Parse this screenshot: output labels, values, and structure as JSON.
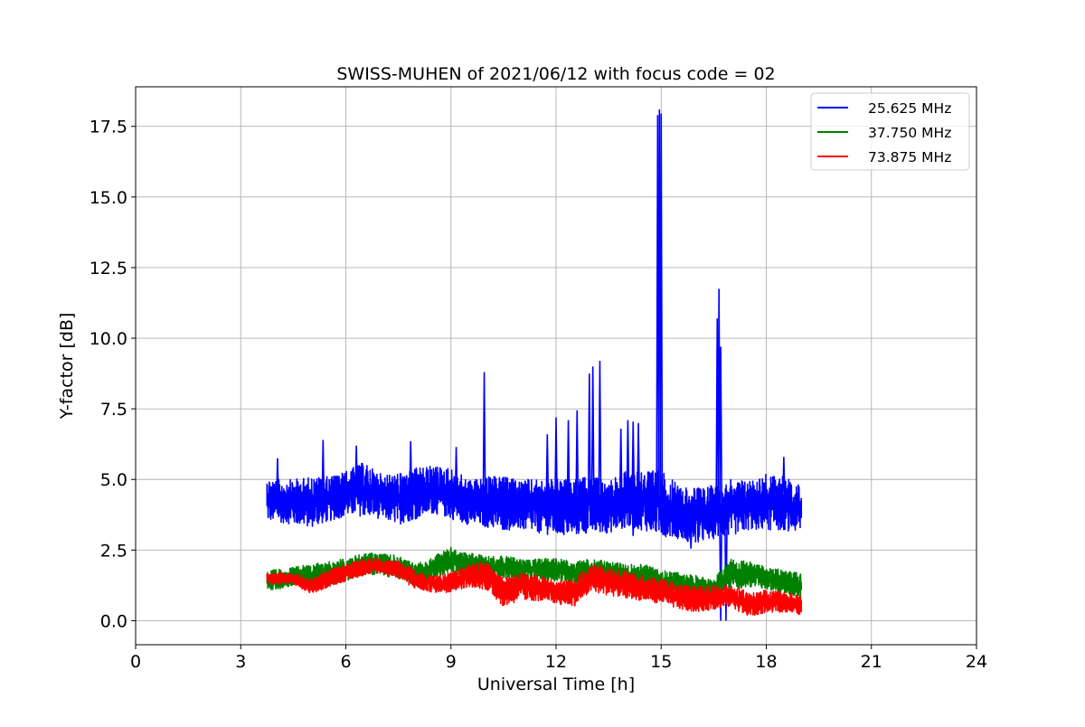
{
  "chart_data": {
    "type": "line",
    "title": "SWISS-MUHEN of 2021/06/12 with focus code = 02",
    "xlabel": "Universal Time [h]",
    "ylabel": "Y-factor [dB]",
    "xlim": [
      0,
      24
    ],
    "ylim": [
      -0.85,
      18.9
    ],
    "x_ticks": [
      0,
      3,
      6,
      9,
      12,
      15,
      18,
      21,
      24
    ],
    "x_tick_labels": [
      "0",
      "3",
      "6",
      "9",
      "12",
      "15",
      "18",
      "21",
      "24"
    ],
    "y_ticks": [
      0.0,
      2.5,
      5.0,
      7.5,
      10.0,
      12.5,
      15.0,
      17.5
    ],
    "y_tick_labels": [
      "0.0",
      "2.5",
      "5.0",
      "7.5",
      "10.0",
      "12.5",
      "15.0",
      "17.5"
    ],
    "grid": true,
    "legend_position": "top-right",
    "series": [
      {
        "name": "25.625 MHz",
        "color": "#0000ff",
        "x": [
          3.75,
          4.0,
          4.5,
          5.0,
          5.5,
          6.0,
          6.5,
          7.0,
          7.5,
          8.0,
          8.5,
          9.0,
          9.5,
          10.0,
          10.5,
          11.0,
          11.5,
          12.0,
          12.5,
          13.0,
          13.5,
          14.0,
          14.5,
          15.0,
          15.5,
          16.0,
          16.5,
          17.0,
          17.5,
          18.0,
          18.5,
          19.0
        ],
        "values": [
          4.2,
          4.1,
          4.0,
          3.9,
          4.0,
          4.3,
          4.6,
          4.3,
          4.1,
          4.3,
          4.6,
          4.2,
          4.0,
          4.1,
          4.2,
          4.1,
          4.0,
          4.0,
          4.0,
          4.1,
          4.0,
          4.2,
          4.2,
          4.2,
          3.8,
          3.6,
          3.7,
          3.9,
          4.0,
          4.1,
          4.1,
          4.0
        ],
        "band_low": [
          3.5,
          3.5,
          3.4,
          3.3,
          3.5,
          3.7,
          3.7,
          3.6,
          3.4,
          3.6,
          3.8,
          3.6,
          3.4,
          3.3,
          3.2,
          3.2,
          3.1,
          3.0,
          3.0,
          3.1,
          3.1,
          3.3,
          3.2,
          3.0,
          2.9,
          2.7,
          2.9,
          3.0,
          3.2,
          3.2,
          3.2,
          3.1
        ],
        "band_high": [
          5.1,
          5.0,
          5.0,
          5.1,
          5.1,
          5.3,
          5.6,
          5.2,
          5.2,
          5.4,
          5.5,
          5.4,
          5.0,
          5.1,
          5.1,
          5.0,
          5.0,
          5.0,
          5.0,
          5.1,
          5.0,
          5.3,
          5.4,
          5.3,
          4.8,
          4.7,
          4.8,
          5.0,
          5.0,
          5.2,
          5.1,
          4.8
        ],
        "spikes": [
          [
            4.05,
            5.75
          ],
          [
            5.35,
            6.4
          ],
          [
            6.3,
            6.2
          ],
          [
            7.85,
            6.35
          ],
          [
            9.15,
            6.15
          ],
          [
            9.95,
            8.8
          ],
          [
            11.75,
            6.6
          ],
          [
            12.0,
            7.2
          ],
          [
            12.35,
            7.1
          ],
          [
            12.6,
            7.45
          ],
          [
            12.95,
            8.75
          ],
          [
            13.05,
            9.0
          ],
          [
            13.25,
            9.2
          ],
          [
            13.85,
            6.8
          ],
          [
            14.05,
            7.1
          ],
          [
            14.2,
            7.05
          ],
          [
            14.35,
            7.0
          ],
          [
            14.9,
            17.9
          ],
          [
            14.95,
            18.1
          ],
          [
            15.0,
            17.95
          ],
          [
            16.6,
            10.7
          ],
          [
            16.65,
            11.75
          ],
          [
            16.7,
            9.7
          ],
          [
            18.5,
            5.8
          ]
        ],
        "dips": [
          [
            14.2,
            3.0
          ],
          [
            15.85,
            2.55
          ],
          [
            16.7,
            0.0
          ],
          [
            16.85,
            0.0
          ]
        ]
      },
      {
        "name": "37.750 MHz",
        "color": "#008000",
        "x": [
          3.75,
          4.0,
          4.5,
          5.0,
          5.5,
          6.0,
          6.5,
          7.0,
          7.5,
          8.0,
          8.5,
          9.0,
          9.5,
          10.0,
          10.5,
          11.0,
          11.5,
          12.0,
          12.5,
          13.0,
          13.5,
          14.0,
          14.5,
          15.0,
          15.5,
          16.0,
          16.5,
          17.0,
          17.5,
          18.0,
          18.5,
          19.0
        ],
        "values": [
          1.4,
          1.4,
          1.5,
          1.6,
          1.6,
          1.8,
          2.0,
          2.0,
          1.9,
          1.6,
          1.9,
          2.1,
          2.0,
          1.9,
          1.9,
          1.8,
          1.8,
          1.8,
          1.7,
          1.8,
          1.7,
          1.6,
          1.6,
          1.4,
          1.3,
          1.2,
          1.1,
          1.5,
          1.6,
          1.5,
          1.4,
          1.3
        ],
        "band_low": [
          1.1,
          1.1,
          1.2,
          1.3,
          1.2,
          1.4,
          1.6,
          1.6,
          1.5,
          1.2,
          1.5,
          1.7,
          1.6,
          1.5,
          1.5,
          1.4,
          1.4,
          1.4,
          1.3,
          1.4,
          1.3,
          1.2,
          1.2,
          1.0,
          0.9,
          0.8,
          0.6,
          1.1,
          1.2,
          1.1,
          1.0,
          0.8
        ],
        "band_high": [
          1.8,
          1.8,
          1.9,
          2.0,
          2.1,
          2.2,
          2.4,
          2.4,
          2.3,
          2.0,
          2.3,
          2.6,
          2.4,
          2.3,
          2.3,
          2.2,
          2.2,
          2.2,
          2.1,
          2.2,
          2.1,
          2.0,
          2.0,
          1.8,
          1.7,
          1.6,
          1.5,
          2.2,
          2.1,
          1.9,
          1.8,
          1.7
        ]
      },
      {
        "name": "73.875 MHz",
        "color": "#ff0000",
        "x": [
          3.75,
          4.0,
          4.5,
          5.0,
          5.5,
          6.0,
          6.5,
          7.0,
          7.5,
          8.0,
          8.5,
          9.0,
          9.5,
          10.0,
          10.5,
          11.0,
          11.5,
          12.0,
          12.5,
          13.0,
          13.5,
          14.0,
          14.5,
          15.0,
          15.5,
          16.0,
          16.5,
          17.0,
          17.5,
          18.0,
          18.5,
          19.0
        ],
        "values": [
          1.5,
          1.5,
          1.5,
          1.2,
          1.5,
          1.7,
          1.9,
          2.0,
          1.8,
          1.4,
          1.3,
          1.3,
          1.6,
          1.5,
          1.0,
          1.2,
          1.1,
          1.0,
          1.0,
          1.5,
          1.4,
          1.3,
          1.2,
          1.1,
          0.9,
          0.8,
          0.9,
          0.9,
          0.5,
          0.7,
          0.6,
          0.5
        ],
        "band_low": [
          1.3,
          1.3,
          1.3,
          0.9,
          1.2,
          1.4,
          1.6,
          1.7,
          1.5,
          1.1,
          1.0,
          1.0,
          1.2,
          1.1,
          0.5,
          0.7,
          0.7,
          0.6,
          0.5,
          1.0,
          0.9,
          0.8,
          0.7,
          0.6,
          0.4,
          0.3,
          0.4,
          0.5,
          0.1,
          0.3,
          0.3,
          0.2
        ],
        "band_high": [
          1.7,
          1.7,
          1.7,
          1.5,
          1.8,
          2.0,
          2.2,
          2.2,
          2.1,
          1.8,
          1.6,
          1.7,
          2.0,
          2.1,
          1.5,
          1.7,
          1.6,
          1.4,
          1.5,
          2.0,
          1.9,
          1.8,
          1.6,
          1.5,
          1.3,
          1.2,
          1.3,
          1.3,
          1.0,
          1.1,
          1.0,
          0.9
        ]
      }
    ]
  }
}
